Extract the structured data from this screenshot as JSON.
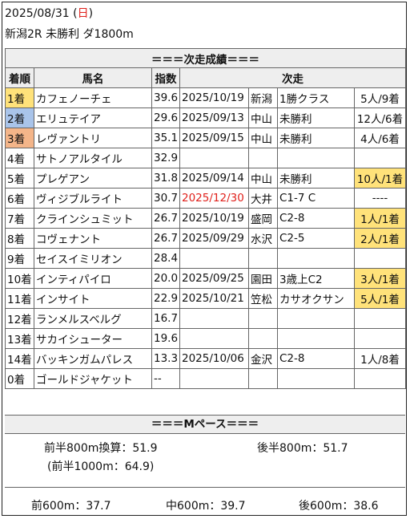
{
  "header": {
    "date": "2025/08/31",
    "dow_open": " (",
    "dow": "日",
    "dow_close": ")",
    "race": "新潟2R 未勝利 ダ1800m"
  },
  "section_results": "＝＝＝次走成績＝＝＝",
  "columns": {
    "rank": "着順",
    "horse": "馬名",
    "index": "指数",
    "next": "次走"
  },
  "rows": [
    {
      "rank": "1着",
      "horse": "カフェノーチェ",
      "index": "39.6",
      "date": "2025/10/19",
      "venue": "新潟",
      "cls": "1勝クラス",
      "pop": "5人/9着"
    },
    {
      "rank": "2着",
      "horse": "エリュテイア",
      "index": "29.6",
      "date": "2025/09/13",
      "venue": "中山",
      "cls": "未勝利",
      "pop": "12人/6着"
    },
    {
      "rank": "3着",
      "horse": "レヴァントリ",
      "index": "35.1",
      "date": "2025/09/15",
      "venue": "中山",
      "cls": "未勝利",
      "pop": "4人/6着"
    },
    {
      "rank": "4着",
      "horse": "サトノアルタイル",
      "index": "32.9",
      "date": "",
      "venue": "",
      "cls": "",
      "pop": ""
    },
    {
      "rank": "5着",
      "horse": "プレゲアン",
      "index": "31.8",
      "date": "2025/09/14",
      "venue": "中山",
      "cls": "未勝利",
      "pop": "10人/1着"
    },
    {
      "rank": "6着",
      "horse": "ヴィジブルライト",
      "index": "30.7",
      "date": "2025/12/30",
      "venue": "大井",
      "cls": "C1-7 C",
      "pop": "----"
    },
    {
      "rank": "7着",
      "horse": "クラインシュミット",
      "index": "26.7",
      "date": "2025/10/19",
      "venue": "盛岡",
      "cls": "C2-8",
      "pop": "1人/1着"
    },
    {
      "rank": "8着",
      "horse": "コヴェナント",
      "index": "26.7",
      "date": "2025/09/29",
      "venue": "水沢",
      "cls": "C2-5",
      "pop": "2人/1着"
    },
    {
      "rank": "9着",
      "horse": "セイスイミリオン",
      "index": "28.4",
      "date": "",
      "venue": "",
      "cls": "",
      "pop": ""
    },
    {
      "rank": "10着",
      "horse": "インティパイロ",
      "index": "20.0",
      "date": "2025/09/25",
      "venue": "園田",
      "cls": "3歳上C2",
      "pop": "3人/1着"
    },
    {
      "rank": "11着",
      "horse": "インサイト",
      "index": "22.9",
      "date": "2025/10/21",
      "venue": "笠松",
      "cls": "カサオクサン",
      "pop": "5人/1着"
    },
    {
      "rank": "12着",
      "horse": "ランメルスベルグ",
      "index": "16.7",
      "date": "",
      "venue": "",
      "cls": "",
      "pop": ""
    },
    {
      "rank": "13着",
      "horse": "サカイシューター",
      "index": "19.6",
      "date": "",
      "venue": "",
      "cls": "",
      "pop": ""
    },
    {
      "rank": "14着",
      "horse": "バッキンガムパレス",
      "index": "13.3",
      "date": "2025/10/06",
      "venue": "金沢",
      "cls": "C2-8",
      "pop": "1人/8着"
    },
    {
      "rank": "0着",
      "horse": "ゴールドジャケット",
      "index": "--",
      "date": "",
      "venue": "",
      "cls": "",
      "pop": ""
    }
  ],
  "section_pace": "＝＝＝Mペース＝＝＝",
  "pace": {
    "front800": "前半800m換算：51.9",
    "back800": "後半800m：51.7",
    "front1000": "(前半1000m：64.9)",
    "first600": "前600m：37.7",
    "mid600": "中600m：39.7",
    "last600": "後600m：38.6"
  }
}
